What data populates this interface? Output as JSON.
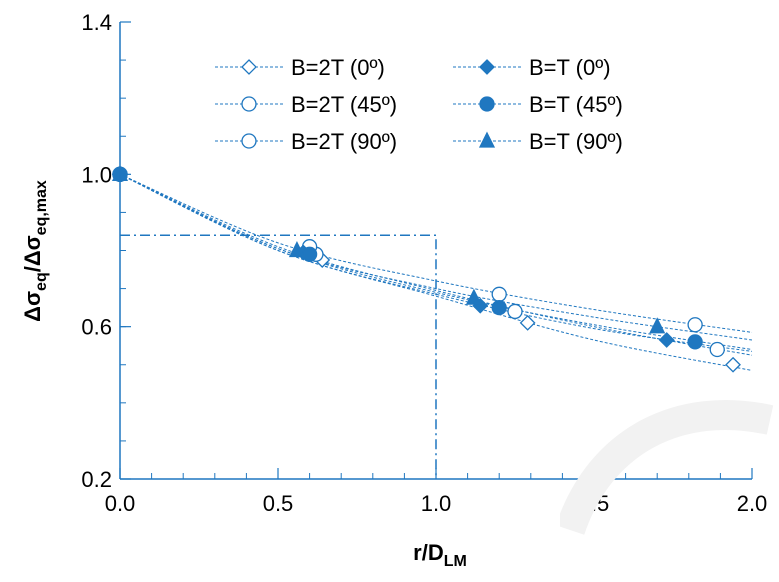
{
  "chart_data": {
    "type": "scatter",
    "xlabel": "r/D",
    "xlabel_sub": "LM",
    "ylabel_parts": [
      "Δσ",
      "eq",
      "/Δσ",
      "eq,max"
    ],
    "xlim": [
      0.0,
      2.0
    ],
    "ylim": [
      0.2,
      1.4
    ],
    "xticks": [
      "0.0",
      "0.5",
      "1.0",
      "1.5",
      "2.0"
    ],
    "yticks": [
      "0.2",
      "0.6",
      "1.0",
      "1.4"
    ],
    "xtick_values": [
      0.0,
      0.5,
      1.0,
      1.5,
      2.0
    ],
    "ytick_values": [
      0.2,
      0.6,
      1.0,
      1.4
    ],
    "x_minor_step": 0.1,
    "y_minor_step": 0.1,
    "legend_position": "top-center",
    "accent_color": "#1f77c0",
    "reference_line": {
      "x": [
        0.0,
        1.0,
        1.0
      ],
      "y": [
        0.84,
        0.84,
        0.2
      ]
    },
    "series": [
      {
        "name": "B=2T (0º)",
        "marker": "diamond-open",
        "points": [
          [
            0.0,
            1.0
          ],
          [
            0.64,
            0.775
          ],
          [
            1.29,
            0.61
          ],
          [
            1.94,
            0.5
          ]
        ],
        "fit": [
          [
            0.0,
            1.0
          ],
          [
            0.5,
            0.8
          ],
          [
            1.0,
            0.68
          ],
          [
            1.5,
            0.565
          ],
          [
            2.0,
            0.485
          ]
        ]
      },
      {
        "name": "B=2T (45º)",
        "marker": "circle-open",
        "points": [
          [
            0.0,
            1.0
          ],
          [
            0.62,
            0.79
          ],
          [
            1.25,
            0.64
          ],
          [
            1.89,
            0.54
          ]
        ],
        "fit": [
          [
            0.0,
            1.0
          ],
          [
            0.5,
            0.81
          ],
          [
            1.0,
            0.695
          ],
          [
            1.5,
            0.6
          ],
          [
            2.0,
            0.525
          ]
        ]
      },
      {
        "name": "B=2T (90º)",
        "marker": "circle-open",
        "points": [
          [
            0.0,
            1.0
          ],
          [
            0.6,
            0.81
          ],
          [
            1.2,
            0.685
          ],
          [
            1.82,
            0.605
          ]
        ],
        "fit": [
          [
            0.0,
            1.0
          ],
          [
            0.5,
            0.82
          ],
          [
            1.0,
            0.72
          ],
          [
            1.5,
            0.645
          ],
          [
            2.0,
            0.585
          ]
        ]
      },
      {
        "name": "B=T (0º)",
        "marker": "diamond-filled",
        "points": [
          [
            0.0,
            1.0
          ],
          [
            0.58,
            0.795
          ],
          [
            1.14,
            0.655
          ],
          [
            1.73,
            0.565
          ]
        ],
        "fit": [
          [
            0.0,
            1.0
          ],
          [
            0.5,
            0.8
          ],
          [
            1.0,
            0.685
          ],
          [
            1.5,
            0.595
          ],
          [
            2.0,
            0.535
          ]
        ]
      },
      {
        "name": "B=T (45º)",
        "marker": "circle-filled",
        "points": [
          [
            0.0,
            1.0
          ],
          [
            0.6,
            0.79
          ],
          [
            1.2,
            0.65
          ],
          [
            1.82,
            0.56
          ]
        ],
        "fit": [
          [
            0.0,
            1.0
          ],
          [
            0.5,
            0.805
          ],
          [
            1.0,
            0.69
          ],
          [
            1.5,
            0.605
          ],
          [
            2.0,
            0.54
          ]
        ]
      },
      {
        "name": "B=T (90º)",
        "marker": "triangle-filled",
        "points": [
          [
            0.0,
            1.0
          ],
          [
            0.56,
            0.8
          ],
          [
            1.12,
            0.675
          ],
          [
            1.7,
            0.6
          ]
        ],
        "fit": [
          [
            0.0,
            1.0
          ],
          [
            0.5,
            0.805
          ],
          [
            1.0,
            0.7
          ],
          [
            1.5,
            0.625
          ],
          [
            2.0,
            0.565
          ]
        ]
      }
    ]
  }
}
